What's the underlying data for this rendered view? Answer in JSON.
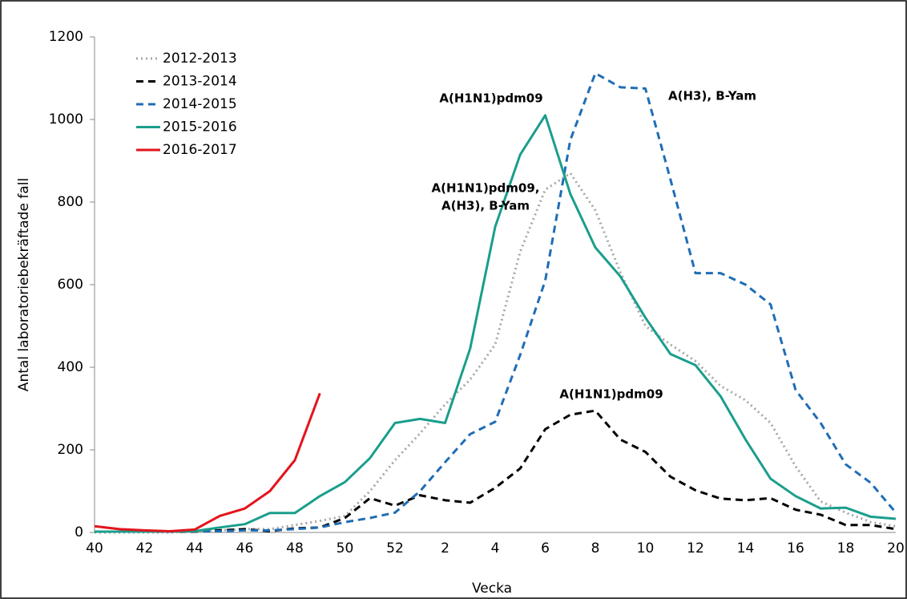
{
  "chart_data": {
    "type": "line",
    "x_label": "Vecka",
    "y_label": "Antal laboratoriebekräftade fall",
    "categories": [
      "40",
      null,
      "42",
      null,
      "44",
      null,
      "46",
      null,
      "48",
      null,
      "50",
      null,
      "52",
      null,
      "2",
      null,
      "4",
      null,
      "6",
      null,
      "8",
      null,
      "10",
      null,
      "12",
      null,
      "14",
      null,
      "16",
      null,
      "18",
      null,
      "20"
    ],
    "ylim": [
      0,
      1200
    ],
    "yticks": [
      0,
      200,
      400,
      600,
      800,
      1000,
      1200
    ],
    "grid": false,
    "legend": "top-left",
    "series": [
      {
        "name": "2012-2013",
        "color": "#a6a6a6",
        "dash": "dotted",
        "values": [
          0,
          0,
          0,
          0,
          2,
          5,
          8,
          8,
          18,
          28,
          40,
          100,
          175,
          240,
          310,
          370,
          455,
          680,
          830,
          870,
          780,
          630,
          500,
          455,
          415,
          355,
          320,
          265,
          160,
          75,
          48,
          25,
          15
        ]
      },
      {
        "name": "2013-2014",
        "color": "#000000",
        "dash": "dashed",
        "values": [
          2,
          2,
          2,
          2,
          2,
          5,
          8,
          3,
          10,
          12,
          35,
          83,
          65,
          90,
          78,
          72,
          108,
          155,
          250,
          285,
          295,
          225,
          195,
          135,
          102,
          82,
          78,
          83,
          55,
          43,
          18,
          18,
          8
        ]
      },
      {
        "name": "2014-2015",
        "color": "#1f6db5",
        "dash": "dashed",
        "values": [
          2,
          2,
          2,
          2,
          3,
          3,
          5,
          5,
          8,
          12,
          25,
          35,
          48,
          100,
          170,
          238,
          268,
          430,
          610,
          950,
          1112,
          1078,
          1075,
          855,
          628,
          628,
          600,
          552,
          345,
          265,
          165,
          120,
          48
        ]
      },
      {
        "name": "2015-2016",
        "color": "#1a9e8c",
        "dash": "solid",
        "values": [
          2,
          2,
          2,
          3,
          3,
          12,
          20,
          47,
          47,
          88,
          122,
          180,
          265,
          275,
          265,
          445,
          740,
          915,
          1010,
          820,
          690,
          620,
          520,
          432,
          405,
          330,
          225,
          130,
          88,
          58,
          60,
          38,
          33
        ]
      },
      {
        "name": "2016-2017",
        "color": "#e3141c",
        "dash": "solid",
        "values": [
          15,
          8,
          5,
          3,
          7,
          40,
          58,
          100,
          175,
          337,
          null,
          null,
          null,
          null,
          null,
          null,
          null,
          null,
          null,
          null,
          null,
          null,
          null,
          null,
          null,
          null,
          null,
          null,
          null,
          null,
          null,
          null,
          null
        ]
      }
    ],
    "annotations": [
      {
        "lines": [
          "A(H1N1)pdm09"
        ],
        "color": "#1a9e8c"
      },
      {
        "lines": [
          "A(H3), B-Yam"
        ],
        "color": "#1f6db5"
      },
      {
        "lines": [
          "A(H1N1)pdm09,",
          "A(H3), B-Yam"
        ],
        "color": "#8c8c8c"
      },
      {
        "lines": [
          "A(H1N1)pdm09"
        ],
        "color": "#000000"
      }
    ]
  }
}
